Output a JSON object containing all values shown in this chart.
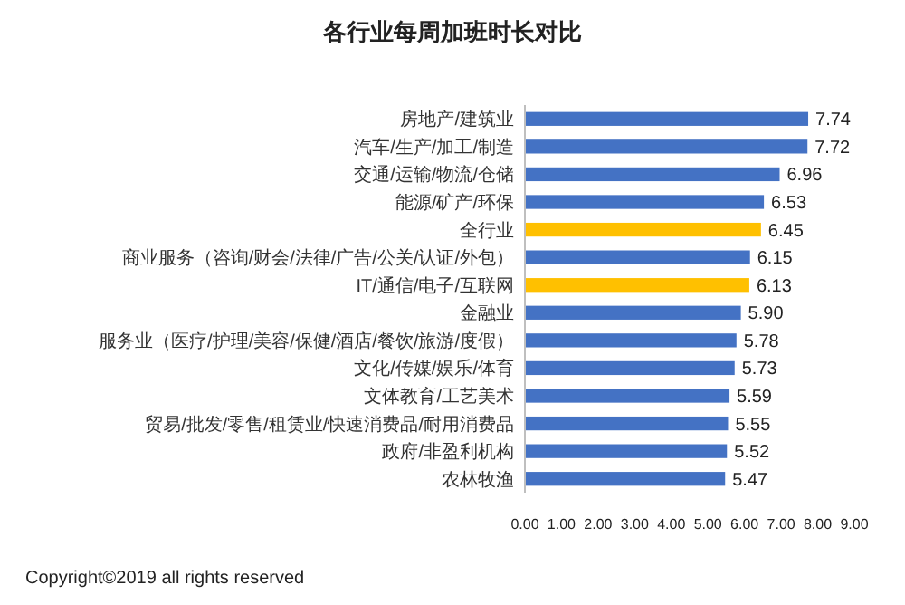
{
  "chart_data": {
    "type": "bar",
    "orientation": "horizontal",
    "title": "各行业每周加班时长对比",
    "categories": [
      "房地产/建筑业",
      "汽车/生产/加工/制造",
      "交通/运输/物流/仓储",
      "能源/矿产/环保",
      "全行业",
      "商业服务（咨询/财会/法律/广告/公关/认证/外包）",
      "IT/通信/电子/互联网",
      "金融业",
      "服务业（医疗/护理/美容/保健/酒店/餐饮/旅游/度假）",
      "文化/传媒/娱乐/体育",
      "文体教育/工艺美术",
      "贸易/批发/零售/租赁业/快速消费品/耐用消费品",
      "政府/非盈利机构",
      "农林牧渔"
    ],
    "values": [
      7.74,
      7.72,
      6.96,
      6.53,
      6.45,
      6.15,
      6.13,
      5.9,
      5.78,
      5.73,
      5.59,
      5.55,
      5.52,
      5.47
    ],
    "value_labels": [
      "7.74",
      "7.72",
      "6.96",
      "6.53",
      "6.45",
      "6.15",
      "6.13",
      "5.90",
      "5.78",
      "5.73",
      "5.59",
      "5.55",
      "5.52",
      "5.47"
    ],
    "colors": [
      "#4472c4",
      "#4472c4",
      "#4472c4",
      "#4472c4",
      "#ffc000",
      "#4472c4",
      "#ffc000",
      "#4472c4",
      "#4472c4",
      "#4472c4",
      "#4472c4",
      "#4472c4",
      "#4472c4",
      "#4472c4"
    ],
    "xlim": [
      0,
      9
    ],
    "xticks": [
      {
        "value": 0,
        "label": "0.00"
      },
      {
        "value": 1,
        "label": "1.00"
      },
      {
        "value": 2,
        "label": "2.00"
      },
      {
        "value": 3,
        "label": "3.00"
      },
      {
        "value": 4,
        "label": "4.00"
      },
      {
        "value": 5,
        "label": "5.00"
      },
      {
        "value": 6,
        "label": "6.00"
      },
      {
        "value": 7,
        "label": "7.00"
      },
      {
        "value": 8,
        "label": "8.00"
      },
      {
        "value": 9,
        "label": "9.00"
      }
    ],
    "grid": false,
    "annotations": [
      "Copyright©2019 all rights reserved"
    ]
  }
}
